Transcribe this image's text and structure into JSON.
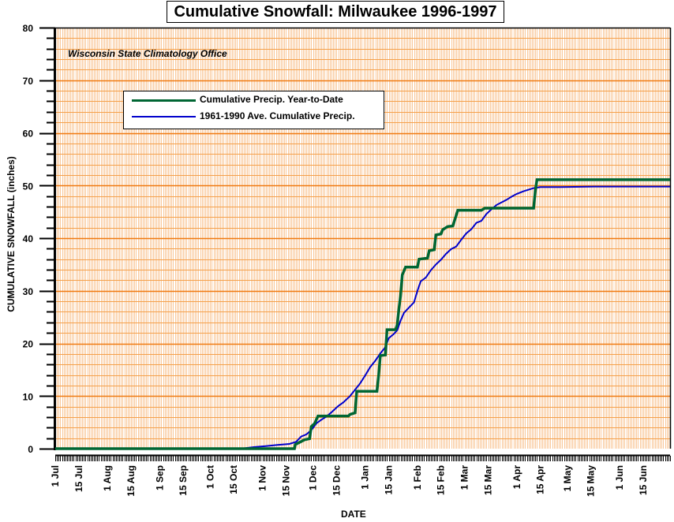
{
  "chart_data": {
    "type": "line",
    "title": "Cumulative Snowfall: Milwaukee 1996-1997",
    "subtitle": "Wisconsin State Climatology Office",
    "xlabel": "DATE",
    "ylabel": "CUMULATIVE SNOWFALL (inches)",
    "ylim": [
      0,
      80
    ],
    "yticks": [
      0,
      10,
      20,
      30,
      40,
      50,
      60,
      70,
      80
    ],
    "x_unit": "days since 1 Jul 1996",
    "xlim": [
      0,
      365
    ],
    "xticks": [
      {
        "day": 0,
        "label": "1 Jul"
      },
      {
        "day": 14,
        "label": "15 Jul"
      },
      {
        "day": 31,
        "label": "1 Aug"
      },
      {
        "day": 45,
        "label": "15 Aug"
      },
      {
        "day": 62,
        "label": "1 Sep"
      },
      {
        "day": 76,
        "label": "15 Sep"
      },
      {
        "day": 92,
        "label": "1 Oct"
      },
      {
        "day": 106,
        "label": "15 Oct"
      },
      {
        "day": 123,
        "label": "1 Nov"
      },
      {
        "day": 137,
        "label": "15 Nov"
      },
      {
        "day": 153,
        "label": "1 Dec"
      },
      {
        "day": 167,
        "label": "15 Dec"
      },
      {
        "day": 184,
        "label": "1 Jan"
      },
      {
        "day": 198,
        "label": "15 Jan"
      },
      {
        "day": 215,
        "label": "1 Feb"
      },
      {
        "day": 229,
        "label": "15 Feb"
      },
      {
        "day": 243,
        "label": "1 Mar"
      },
      {
        "day": 257,
        "label": "15 Mar"
      },
      {
        "day": 274,
        "label": "1 Apr"
      },
      {
        "day": 288,
        "label": "15 Apr"
      },
      {
        "day": 304,
        "label": "1 May"
      },
      {
        "day": 318,
        "label": "15 May"
      },
      {
        "day": 335,
        "label": "1 Jun"
      },
      {
        "day": 349,
        "label": "15 Jun"
      }
    ],
    "grid": true,
    "legend_position": "top-left",
    "series": [
      {
        "name": "Cumulative Precip. Year-to-Date",
        "color": "#006633",
        "step": true,
        "points": [
          [
            0,
            0
          ],
          [
            142,
            0
          ],
          [
            142.5,
            0.8
          ],
          [
            145,
            1.2
          ],
          [
            148,
            1.7
          ],
          [
            151,
            1.9
          ],
          [
            152,
            4.2
          ],
          [
            154,
            4.8
          ],
          [
            156,
            6.2
          ],
          [
            174,
            6.2
          ],
          [
            175,
            6.5
          ],
          [
            178,
            6.8
          ],
          [
            179,
            10.9
          ],
          [
            191,
            10.9
          ],
          [
            192,
            14
          ],
          [
            193,
            17.7
          ],
          [
            196,
            17.8
          ],
          [
            197,
            22.6
          ],
          [
            202,
            22.6
          ],
          [
            203,
            23.5
          ],
          [
            204,
            26.5
          ],
          [
            205,
            29
          ],
          [
            206,
            33
          ],
          [
            208,
            34.5
          ],
          [
            215,
            34.5
          ],
          [
            216,
            36
          ],
          [
            221,
            36.2
          ],
          [
            222,
            37.6
          ],
          [
            225,
            37.8
          ],
          [
            226,
            40.6
          ],
          [
            229,
            40.8
          ],
          [
            230,
            41.6
          ],
          [
            233,
            42.2
          ],
          [
            236,
            42.3
          ],
          [
            239,
            45.3
          ],
          [
            253,
            45.3
          ],
          [
            255,
            45.7
          ],
          [
            284,
            45.7
          ],
          [
            285,
            49
          ],
          [
            286,
            51.1
          ],
          [
            365,
            51.1
          ]
        ]
      },
      {
        "name": "1961-1990 Ave. Cumulative Precip.",
        "color": "#0000cc",
        "step": false,
        "points": [
          [
            0,
            0
          ],
          [
            110,
            0
          ],
          [
            118,
            0.3
          ],
          [
            125,
            0.5
          ],
          [
            132,
            0.7
          ],
          [
            139,
            0.9
          ],
          [
            143,
            1.3
          ],
          [
            146,
            2.3
          ],
          [
            149,
            2.7
          ],
          [
            152,
            3.5
          ],
          [
            155,
            4.8
          ],
          [
            158,
            5.5
          ],
          [
            161,
            6.1
          ],
          [
            164,
            6.9
          ],
          [
            168,
            8.1
          ],
          [
            171,
            8.8
          ],
          [
            175,
            10
          ],
          [
            178,
            11.2
          ],
          [
            181,
            12.4
          ],
          [
            184,
            13.9
          ],
          [
            187,
            15.5
          ],
          [
            190,
            16.7
          ],
          [
            193,
            18.1
          ],
          [
            196,
            19.3
          ],
          [
            198,
            21
          ],
          [
            201,
            21.8
          ],
          [
            203,
            22.5
          ],
          [
            205,
            24.3
          ],
          [
            207,
            25.8
          ],
          [
            210,
            26.8
          ],
          [
            213,
            27.8
          ],
          [
            215,
            30
          ],
          [
            217,
            31.8
          ],
          [
            220,
            32.5
          ],
          [
            223,
            33.9
          ],
          [
            226,
            35
          ],
          [
            229,
            35.9
          ],
          [
            232,
            37
          ],
          [
            235,
            37.9
          ],
          [
            238,
            38.4
          ],
          [
            241,
            39.7
          ],
          [
            244,
            40.9
          ],
          [
            247,
            41.7
          ],
          [
            250,
            42.9
          ],
          [
            253,
            43.3
          ],
          [
            256,
            44.6
          ],
          [
            259,
            45.5
          ],
          [
            262,
            46.3
          ],
          [
            265,
            46.8
          ],
          [
            268,
            47.3
          ],
          [
            271,
            47.9
          ],
          [
            274,
            48.4
          ],
          [
            278,
            48.9
          ],
          [
            281,
            49.2
          ],
          [
            284,
            49.5
          ],
          [
            288,
            49.7
          ],
          [
            300,
            49.7
          ],
          [
            320,
            49.8
          ],
          [
            365,
            49.8
          ]
        ]
      }
    ]
  }
}
